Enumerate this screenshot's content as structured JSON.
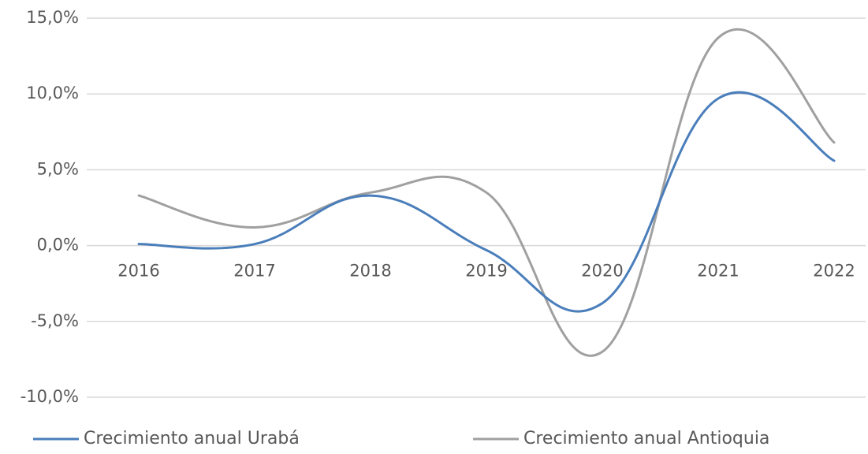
{
  "chart_data": {
    "type": "line",
    "smooth": true,
    "x": [
      "2016",
      "2017",
      "2018",
      "2019",
      "2020",
      "2021",
      "2022"
    ],
    "series": [
      {
        "name": "Crecimiento anual Urabá",
        "values": [
          0.1,
          0.1,
          3.3,
          -0.3,
          -3.8,
          9.7,
          5.6
        ],
        "color": "#4a7ebb"
      },
      {
        "name": "Crecimiento anual Antioquia",
        "values": [
          3.3,
          1.2,
          3.5,
          3.5,
          -7.0,
          13.7,
          6.8
        ],
        "color": "#a0a0a0"
      }
    ],
    "y_ticks": [
      "15,0%",
      "10,0%",
      "5,0%",
      "0,0%",
      "-5,0%",
      "-10,0%"
    ],
    "y_tick_values": [
      15,
      10,
      5,
      0,
      -5,
      -10
    ],
    "ylim": [
      -10,
      15
    ],
    "grid": true,
    "legend_position": "bottom",
    "gridline_color": "#d9d9d9",
    "axis_line_color": "#bfbfbf",
    "label_color": "#595959"
  }
}
